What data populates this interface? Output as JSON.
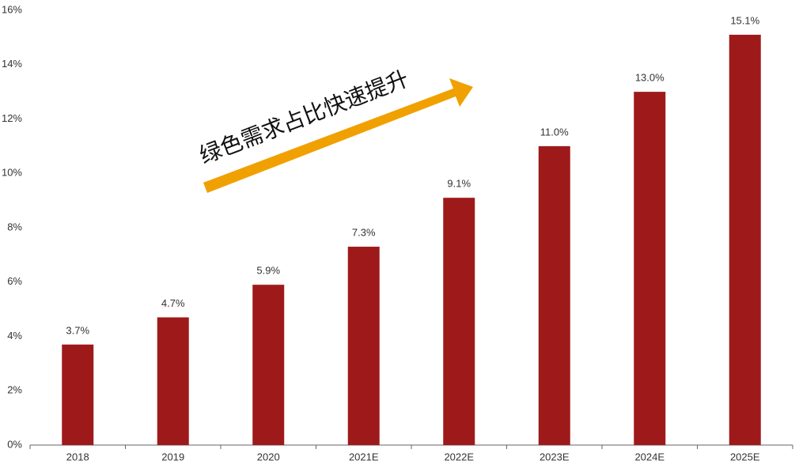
{
  "chart_data": {
    "type": "bar",
    "categories": [
      "2018",
      "2019",
      "2020",
      "2021E",
      "2022E",
      "2023E",
      "2024E",
      "2025E"
    ],
    "values": [
      3.7,
      4.7,
      5.9,
      7.3,
      9.1,
      11.0,
      13.0,
      15.1
    ],
    "value_labels": [
      "3.7%",
      "4.7%",
      "5.9%",
      "7.3%",
      "9.1%",
      "11.0%",
      "13.0%",
      "15.1%"
    ],
    "color": "#9e1a1a",
    "ylim": [
      0,
      16
    ],
    "yticks": [
      {
        "value": 0,
        "label": "0%"
      },
      {
        "value": 2,
        "label": "2%"
      },
      {
        "value": 4,
        "label": "4%"
      },
      {
        "value": 6,
        "label": "6%"
      },
      {
        "value": 8,
        "label": "8%"
      },
      {
        "value": 10,
        "label": "10%"
      },
      {
        "value": 12,
        "label": "12%"
      },
      {
        "value": 14,
        "label": "14%"
      },
      {
        "value": 16,
        "label": "16%"
      }
    ],
    "grid": false,
    "annotation": "绿色需求占比快速提升"
  }
}
